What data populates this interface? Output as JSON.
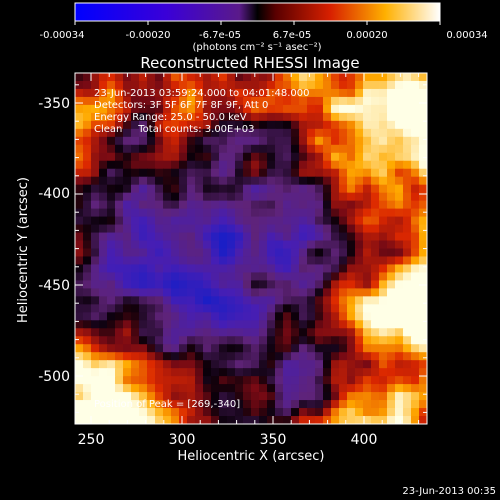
{
  "colorbar": {
    "tick_labels": [
      "-0.00034",
      "-0.00020",
      "-6.7e-05",
      "6.7e-05",
      "0.00020",
      "0.00034"
    ],
    "units": "(photons cm⁻² s⁻¹ asec⁻²)"
  },
  "plot": {
    "title": "Reconstructed RHESSI Image",
    "xlabel": "Heliocentric X (arcsec)",
    "ylabel": "Heliocentric Y (arcsec)",
    "x_ticks": [
      "250",
      "300",
      "350",
      "400"
    ],
    "y_ticks": [
      "-350",
      "-400",
      "-450",
      "-500"
    ]
  },
  "annotations": {
    "line1": "23-Jun-2013 03:59:24.000 to 04:01:48.000",
    "line2": "Detectors: 3F 5F 6F 7F 8F 9F, Att 0",
    "line3": "Energy Range: 25.0 - 50.0 keV",
    "line4": "Clean     Total counts: 3.00E+03",
    "peak": "Position of Peak = [269,-340]"
  },
  "footer": {
    "timestamp": "23-Jun-2013 00:35"
  }
}
